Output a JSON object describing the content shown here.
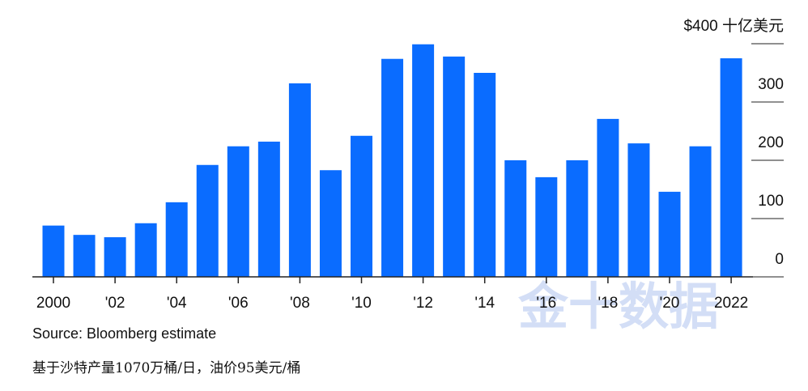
{
  "chart_data": {
    "type": "bar",
    "categories": [
      "2000",
      null,
      "'02",
      null,
      "'04",
      null,
      "'06",
      null,
      "'08",
      null,
      "'10",
      null,
      "'12",
      null,
      "'14",
      null,
      "'16",
      null,
      "'18",
      null,
      "'20",
      null,
      "2022"
    ],
    "values": [
      88,
      72,
      68,
      92,
      128,
      192,
      224,
      232,
      332,
      183,
      242,
      374,
      399,
      378,
      350,
      200,
      171,
      200,
      271,
      229,
      146,
      224,
      375
    ],
    "color": "#0a6cff",
    "ylim": [
      0,
      400
    ],
    "yticks": [
      0,
      100,
      200,
      300,
      {
        "value": 400,
        "label": "$400 十亿美元"
      }
    ],
    "grid": true,
    "source": "Source: Bloomberg estimate",
    "note": "基于沙特产量1070万桶/日，油价95美元/桶",
    "watermark": "金十数据"
  }
}
